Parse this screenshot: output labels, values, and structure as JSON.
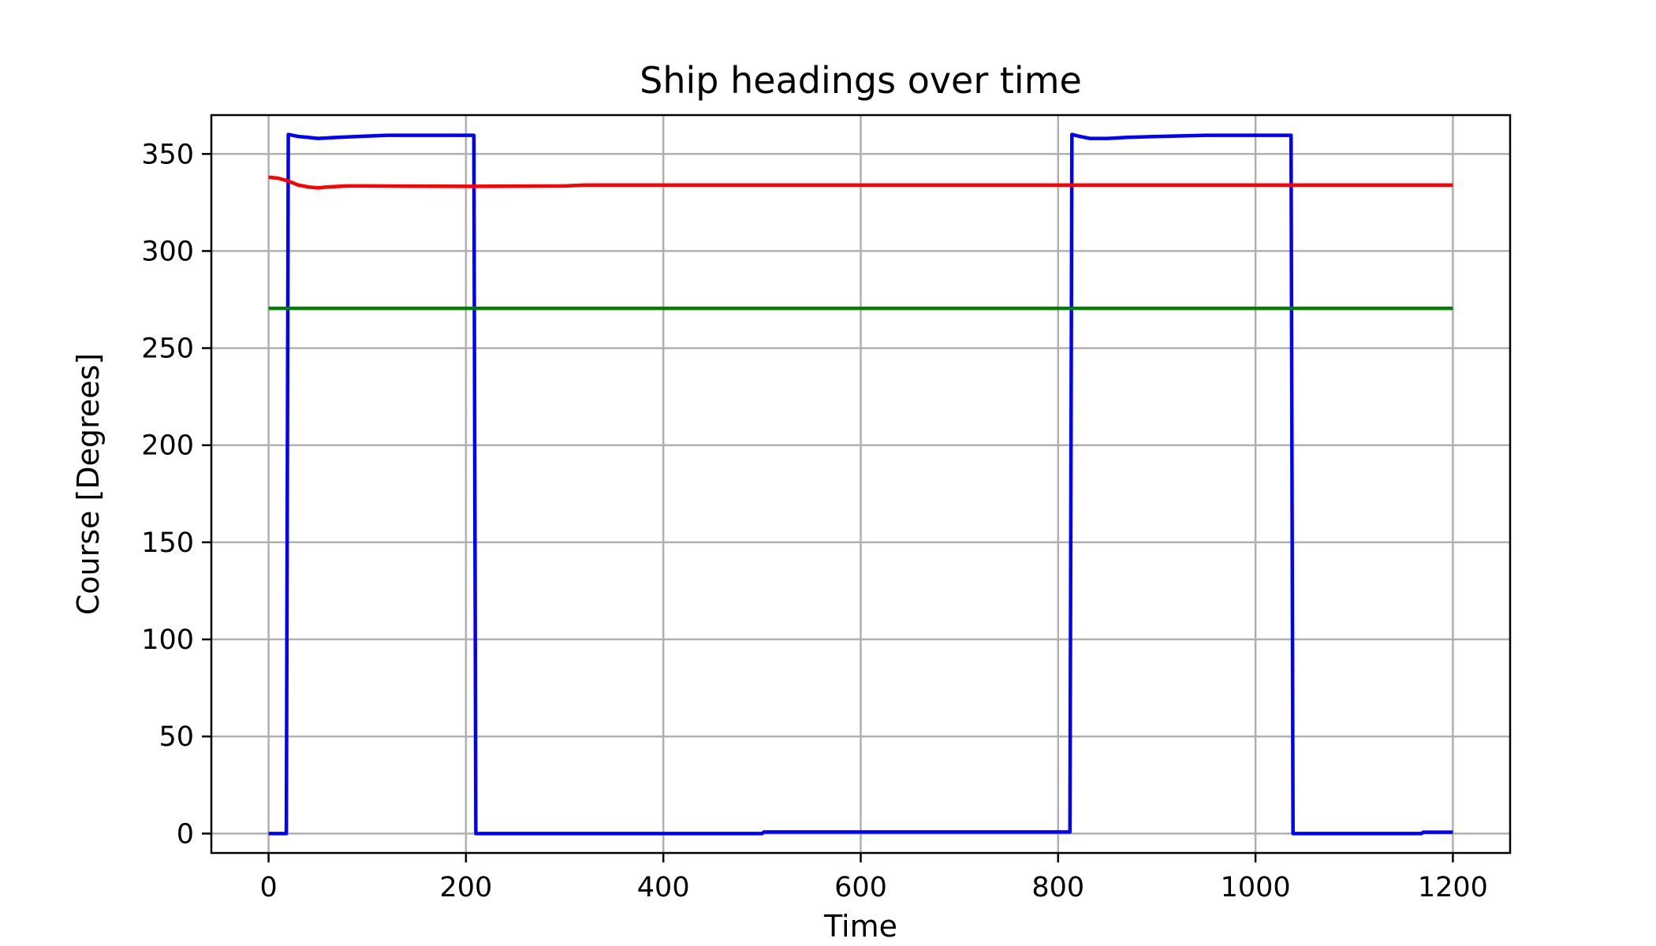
{
  "chart_data": {
    "type": "line",
    "title": "Ship headings over time",
    "xlabel": "Time",
    "ylabel": "Course [Degrees]",
    "xlim": [
      -58,
      1258
    ],
    "ylim": [
      -10,
      370
    ],
    "xticks": [
      0,
      200,
      400,
      600,
      800,
      1000,
      1200
    ],
    "yticks": [
      0,
      50,
      100,
      150,
      200,
      250,
      300,
      350
    ],
    "grid": true,
    "legend": "none",
    "series": [
      {
        "color": "#0000ff",
        "x": [
          0,
          18,
          20,
          30,
          40,
          50,
          70,
          90,
          120,
          208,
          210,
          500,
          502,
          812,
          814,
          822,
          832,
          850,
          870,
          900,
          950,
          1036,
          1038,
          1168,
          1170,
          1200
        ],
        "y": [
          0,
          0,
          360,
          359,
          358.5,
          358,
          358.5,
          359,
          359.6,
          359.6,
          0,
          0,
          0.8,
          0.8,
          360,
          359,
          358,
          358,
          358.5,
          359,
          359.6,
          359.6,
          0,
          0,
          0.7,
          0.7
        ]
      },
      {
        "color": "#ff0000",
        "x": [
          0,
          10,
          20,
          30,
          40,
          50,
          60,
          80,
          100,
          200,
          300,
          320,
          600,
          1200
        ],
        "y": [
          338,
          337.5,
          336,
          334,
          333,
          332.5,
          333,
          333.5,
          333.5,
          333.3,
          333.5,
          334,
          334,
          334
        ]
      },
      {
        "color": "#008000",
        "x": [
          0,
          1200
        ],
        "y": [
          270.5,
          270.5
        ]
      }
    ]
  }
}
